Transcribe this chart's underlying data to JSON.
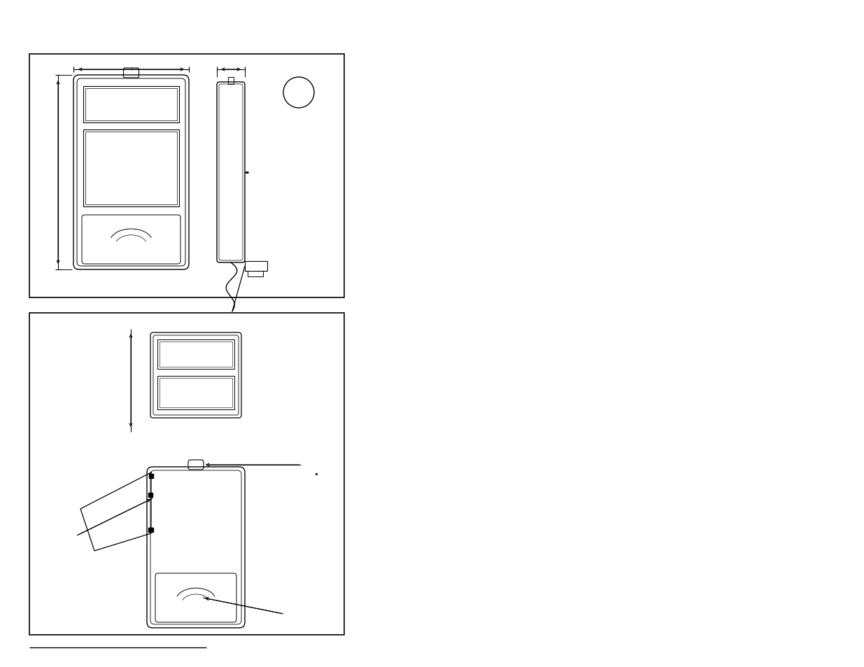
{
  "fig_width": 12.35,
  "fig_height": 9.54,
  "bg_color": "#ffffff",
  "line_color": "#000000"
}
